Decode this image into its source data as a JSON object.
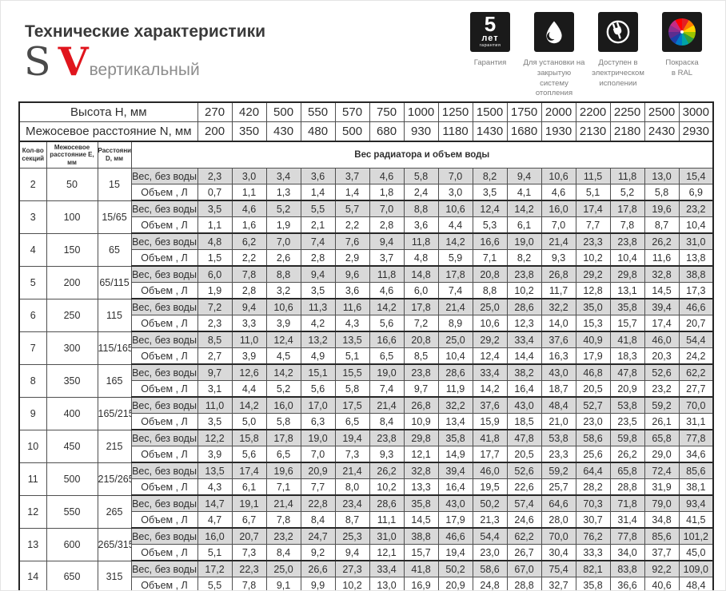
{
  "header": {
    "title": "Технические характеристики",
    "logo_s": "S",
    "logo_v": "V",
    "logo_suffix": "вертикальный"
  },
  "badges": [
    {
      "num": "5",
      "unit": "лет",
      "small": "гарантия",
      "caption": "Гарантия"
    },
    {
      "caption": "Для установки на\nзакрытую систему\nотопления"
    },
    {
      "caption": "Доступен в\nэлектрическом\nисполении"
    },
    {
      "caption": "Покраска\nв RAL"
    }
  ],
  "colors": {
    "accent_red": "#e0151d",
    "tile_black": "#1a1a1a",
    "weight_row_gray": "#d9d9d9"
  },
  "table": {
    "height_label": "Высота H, мм",
    "heights": [
      "270",
      "420",
      "500",
      "550",
      "570",
      "750",
      "1000",
      "1250",
      "1500",
      "1750",
      "2000",
      "2200",
      "2250",
      "2500",
      "3000"
    ],
    "axial_label": "Межосевое расстояние N, мм",
    "axial": [
      "200",
      "350",
      "430",
      "480",
      "500",
      "680",
      "930",
      "1180",
      "1430",
      "1680",
      "1930",
      "2130",
      "2180",
      "2430",
      "2930"
    ],
    "col_sections": "Кол-во\nсекций",
    "col_e": "Межосевое\nрасстояние E, мм",
    "col_d": "Расстояние\nD, мм",
    "span_label": "Вес радиатора и объем воды",
    "weight_label": "Вес, без воды",
    "volume_label": "Объем , Л",
    "rows": [
      {
        "s": "2",
        "e": "50",
        "d": "15",
        "w": [
          "2,3",
          "3,0",
          "3,4",
          "3,6",
          "3,7",
          "4,6",
          "5,8",
          "7,0",
          "8,2",
          "9,4",
          "10,6",
          "11,5",
          "11,8",
          "13,0",
          "15,4"
        ],
        "v": [
          "0,7",
          "1,1",
          "1,3",
          "1,4",
          "1,4",
          "1,8",
          "2,4",
          "3,0",
          "3,5",
          "4,1",
          "4,6",
          "5,1",
          "5,2",
          "5,8",
          "6,9"
        ]
      },
      {
        "s": "3",
        "e": "100",
        "d": "15/65",
        "w": [
          "3,5",
          "4,6",
          "5,2",
          "5,5",
          "5,7",
          "7,0",
          "8,8",
          "10,6",
          "12,4",
          "14,2",
          "16,0",
          "17,4",
          "17,8",
          "19,6",
          "23,2"
        ],
        "v": [
          "1,1",
          "1,6",
          "1,9",
          "2,1",
          "2,2",
          "2,8",
          "3,6",
          "4,4",
          "5,3",
          "6,1",
          "7,0",
          "7,7",
          "7,8",
          "8,7",
          "10,4"
        ]
      },
      {
        "s": "4",
        "e": "150",
        "d": "65",
        "w": [
          "4,8",
          "6,2",
          "7,0",
          "7,4",
          "7,6",
          "9,4",
          "11,8",
          "14,2",
          "16,6",
          "19,0",
          "21,4",
          "23,3",
          "23,8",
          "26,2",
          "31,0"
        ],
        "v": [
          "1,5",
          "2,2",
          "2,6",
          "2,8",
          "2,9",
          "3,7",
          "4,8",
          "5,9",
          "7,1",
          "8,2",
          "9,3",
          "10,2",
          "10,4",
          "11,6",
          "13,8"
        ]
      },
      {
        "s": "5",
        "e": "200",
        "d": "65/115",
        "w": [
          "6,0",
          "7,8",
          "8,8",
          "9,4",
          "9,6",
          "11,8",
          "14,8",
          "17,8",
          "20,8",
          "23,8",
          "26,8",
          "29,2",
          "29,8",
          "32,8",
          "38,8"
        ],
        "v": [
          "1,9",
          "2,8",
          "3,2",
          "3,5",
          "3,6",
          "4,6",
          "6,0",
          "7,4",
          "8,8",
          "10,2",
          "11,7",
          "12,8",
          "13,1",
          "14,5",
          "17,3"
        ]
      },
      {
        "s": "6",
        "e": "250",
        "d": "115",
        "w": [
          "7,2",
          "9,4",
          "10,6",
          "11,3",
          "11,6",
          "14,2",
          "17,8",
          "21,4",
          "25,0",
          "28,6",
          "32,2",
          "35,0",
          "35,8",
          "39,4",
          "46,6"
        ],
        "v": [
          "2,3",
          "3,3",
          "3,9",
          "4,2",
          "4,3",
          "5,6",
          "7,2",
          "8,9",
          "10,6",
          "12,3",
          "14,0",
          "15,3",
          "15,7",
          "17,4",
          "20,7"
        ]
      },
      {
        "s": "7",
        "e": "300",
        "d": "115/165",
        "w": [
          "8,5",
          "11,0",
          "12,4",
          "13,2",
          "13,5",
          "16,6",
          "20,8",
          "25,0",
          "29,2",
          "33,4",
          "37,6",
          "40,9",
          "41,8",
          "46,0",
          "54,4"
        ],
        "v": [
          "2,7",
          "3,9",
          "4,5",
          "4,9",
          "5,1",
          "6,5",
          "8,5",
          "10,4",
          "12,4",
          "14,4",
          "16,3",
          "17,9",
          "18,3",
          "20,3",
          "24,2"
        ]
      },
      {
        "s": "8",
        "e": "350",
        "d": "165",
        "w": [
          "9,7",
          "12,6",
          "14,2",
          "15,1",
          "15,5",
          "19,0",
          "23,8",
          "28,6",
          "33,4",
          "38,2",
          "43,0",
          "46,8",
          "47,8",
          "52,6",
          "62,2"
        ],
        "v": [
          "3,1",
          "4,4",
          "5,2",
          "5,6",
          "5,8",
          "7,4",
          "9,7",
          "11,9",
          "14,2",
          "16,4",
          "18,7",
          "20,5",
          "20,9",
          "23,2",
          "27,7"
        ]
      },
      {
        "s": "9",
        "e": "400",
        "d": "165/215",
        "w": [
          "11,0",
          "14,2",
          "16,0",
          "17,0",
          "17,5",
          "21,4",
          "26,8",
          "32,2",
          "37,6",
          "43,0",
          "48,4",
          "52,7",
          "53,8",
          "59,2",
          "70,0"
        ],
        "v": [
          "3,5",
          "5,0",
          "5,8",
          "6,3",
          "6,5",
          "8,4",
          "10,9",
          "13,4",
          "15,9",
          "18,5",
          "21,0",
          "23,0",
          "23,5",
          "26,1",
          "31,1"
        ]
      },
      {
        "s": "10",
        "e": "450",
        "d": "215",
        "w": [
          "12,2",
          "15,8",
          "17,8",
          "19,0",
          "19,4",
          "23,8",
          "29,8",
          "35,8",
          "41,8",
          "47,8",
          "53,8",
          "58,6",
          "59,8",
          "65,8",
          "77,8"
        ],
        "v": [
          "3,9",
          "5,6",
          "6,5",
          "7,0",
          "7,3",
          "9,3",
          "12,1",
          "14,9",
          "17,7",
          "20,5",
          "23,3",
          "25,6",
          "26,2",
          "29,0",
          "34,6"
        ]
      },
      {
        "s": "11",
        "e": "500",
        "d": "215/265",
        "w": [
          "13,5",
          "17,4",
          "19,6",
          "20,9",
          "21,4",
          "26,2",
          "32,8",
          "39,4",
          "46,0",
          "52,6",
          "59,2",
          "64,4",
          "65,8",
          "72,4",
          "85,6"
        ],
        "v": [
          "4,3",
          "6,1",
          "7,1",
          "7,7",
          "8,0",
          "10,2",
          "13,3",
          "16,4",
          "19,5",
          "22,6",
          "25,7",
          "28,2",
          "28,8",
          "31,9",
          "38,1"
        ]
      },
      {
        "s": "12",
        "e": "550",
        "d": "265",
        "w": [
          "14,7",
          "19,1",
          "21,4",
          "22,8",
          "23,4",
          "28,6",
          "35,8",
          "43,0",
          "50,2",
          "57,4",
          "64,6",
          "70,3",
          "71,8",
          "79,0",
          "93,4"
        ],
        "v": [
          "4,7",
          "6,7",
          "7,8",
          "8,4",
          "8,7",
          "11,1",
          "14,5",
          "17,9",
          "21,3",
          "24,6",
          "28,0",
          "30,7",
          "31,4",
          "34,8",
          "41,5"
        ]
      },
      {
        "s": "13",
        "e": "600",
        "d": "265/315",
        "w": [
          "16,0",
          "20,7",
          "23,2",
          "24,7",
          "25,3",
          "31,0",
          "38,8",
          "46,6",
          "54,4",
          "62,2",
          "70,0",
          "76,2",
          "77,8",
          "85,6",
          "101,2"
        ],
        "v": [
          "5,1",
          "7,3",
          "8,4",
          "9,2",
          "9,4",
          "12,1",
          "15,7",
          "19,4",
          "23,0",
          "26,7",
          "30,4",
          "33,3",
          "34,0",
          "37,7",
          "45,0"
        ]
      },
      {
        "s": "14",
        "e": "650",
        "d": "315",
        "w": [
          "17,2",
          "22,3",
          "25,0",
          "26,6",
          "27,3",
          "33,4",
          "41,8",
          "50,2",
          "58,6",
          "67,0",
          "75,4",
          "82,1",
          "83,8",
          "92,2",
          "109,0"
        ],
        "v": [
          "5,5",
          "7,8",
          "9,1",
          "9,9",
          "10,2",
          "13,0",
          "16,9",
          "20,9",
          "24,8",
          "28,8",
          "32,7",
          "35,8",
          "36,6",
          "40,6",
          "48,4"
        ]
      }
    ]
  }
}
